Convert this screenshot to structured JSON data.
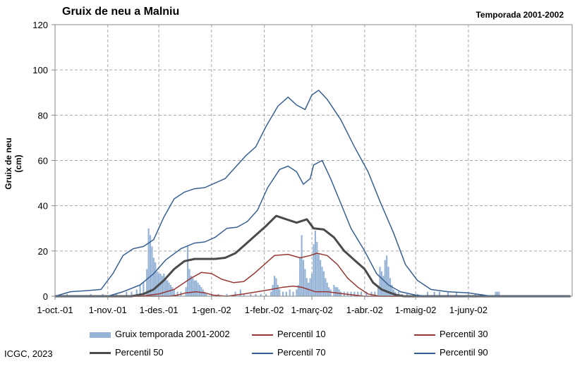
{
  "chart_data": {
    "type": "bar+line",
    "title": "Gruix de neu a Malniu",
    "subtitle": "Temporada 2001-2002",
    "ylabel": "Gruix de neu (cm)",
    "xlabel": "",
    "ylim": [
      0,
      120
    ],
    "yticks": [
      "0",
      "20",
      "40",
      "60",
      "80",
      "100",
      "120"
    ],
    "xlim": [
      "2001-10-01",
      "2002-07-31"
    ],
    "xticks": [
      {
        "date": "2001-10-01",
        "label": "1-oct.-01"
      },
      {
        "date": "2001-11-01",
        "label": "1-nov.-01"
      },
      {
        "date": "2001-12-01",
        "label": "1-des.-01"
      },
      {
        "date": "2002-01-01",
        "label": "1-gen.-02"
      },
      {
        "date": "2002-02-01",
        "label": "1-febr.-02"
      },
      {
        "date": "2002-03-01",
        "label": "1-març-02"
      },
      {
        "date": "2002-04-01",
        "label": "1-abr.-02"
      },
      {
        "date": "2002-05-01",
        "label": "1-maig-02"
      },
      {
        "date": "2002-06-01",
        "label": "1-juny-02"
      }
    ],
    "grid": true,
    "legend_placement": "bottom",
    "bars": {
      "name": "Gruix temporada 2001-2002",
      "color": "#95b3d7",
      "points": [
        [
          "2001-10-08",
          1
        ],
        [
          "2001-10-22",
          1
        ],
        [
          "2001-10-29",
          1
        ],
        [
          "2001-11-06",
          1
        ],
        [
          "2001-11-12",
          2
        ],
        [
          "2001-11-15",
          2
        ],
        [
          "2001-11-18",
          3
        ],
        [
          "2001-11-20",
          5
        ],
        [
          "2001-11-22",
          6
        ],
        [
          "2001-11-24",
          12
        ],
        [
          "2001-11-25",
          30
        ],
        [
          "2001-11-26",
          27
        ],
        [
          "2001-11-27",
          22
        ],
        [
          "2001-11-28",
          17
        ],
        [
          "2001-11-29",
          15
        ],
        [
          "2001-11-30",
          11
        ],
        [
          "2001-12-01",
          10
        ],
        [
          "2001-12-02",
          10
        ],
        [
          "2001-12-03",
          9
        ],
        [
          "2001-12-04",
          10
        ],
        [
          "2001-12-05",
          8
        ],
        [
          "2001-12-06",
          7
        ],
        [
          "2001-12-07",
          6
        ],
        [
          "2001-12-08",
          5
        ],
        [
          "2001-12-09",
          4
        ],
        [
          "2001-12-10",
          3
        ],
        [
          "2001-12-12",
          2
        ],
        [
          "2001-12-14",
          2
        ],
        [
          "2001-12-17",
          4
        ],
        [
          "2001-12-18",
          22
        ],
        [
          "2001-12-19",
          12
        ],
        [
          "2001-12-20",
          9
        ],
        [
          "2001-12-21",
          8
        ],
        [
          "2001-12-22",
          7
        ],
        [
          "2001-12-23",
          7
        ],
        [
          "2001-12-24",
          6
        ],
        [
          "2001-12-25",
          5
        ],
        [
          "2001-12-26",
          4
        ],
        [
          "2001-12-27",
          3
        ],
        [
          "2001-12-28",
          2
        ],
        [
          "2001-12-29",
          1
        ],
        [
          "2002-01-01",
          1
        ],
        [
          "2002-01-05",
          1
        ],
        [
          "2002-01-10",
          1
        ],
        [
          "2002-01-15",
          2
        ],
        [
          "2002-01-18",
          3
        ],
        [
          "2002-01-20",
          1
        ],
        [
          "2002-01-24",
          1
        ],
        [
          "2002-01-27",
          1
        ],
        [
          "2002-01-30",
          1
        ],
        [
          "2002-02-02",
          1
        ],
        [
          "2002-02-05",
          2
        ],
        [
          "2002-02-06",
          5
        ],
        [
          "2002-02-07",
          9
        ],
        [
          "2002-02-08",
          8
        ],
        [
          "2002-02-09",
          5
        ],
        [
          "2002-02-10",
          3
        ],
        [
          "2002-02-12",
          2
        ],
        [
          "2002-02-14",
          2
        ],
        [
          "2002-02-16",
          3
        ],
        [
          "2002-02-18",
          2
        ],
        [
          "2002-02-20",
          3
        ],
        [
          "2002-02-21",
          5
        ],
        [
          "2002-02-22",
          17
        ],
        [
          "2002-02-23",
          27
        ],
        [
          "2002-02-24",
          16
        ],
        [
          "2002-02-25",
          12
        ],
        [
          "2002-02-26",
          8
        ],
        [
          "2002-02-27",
          6
        ],
        [
          "2002-02-28",
          8
        ],
        [
          "2002-03-01",
          10
        ],
        [
          "2002-03-02",
          23
        ],
        [
          "2002-03-03",
          29
        ],
        [
          "2002-03-04",
          24
        ],
        [
          "2002-03-05",
          19
        ],
        [
          "2002-03-06",
          16
        ],
        [
          "2002-03-07",
          13
        ],
        [
          "2002-03-08",
          11
        ],
        [
          "2002-03-09",
          8
        ],
        [
          "2002-03-10",
          6
        ],
        [
          "2002-03-11",
          4
        ],
        [
          "2002-03-12",
          3
        ],
        [
          "2002-03-14",
          5
        ],
        [
          "2002-03-15",
          4
        ],
        [
          "2002-03-16",
          4
        ],
        [
          "2002-03-17",
          3
        ],
        [
          "2002-03-18",
          2
        ],
        [
          "2002-03-20",
          2
        ],
        [
          "2002-03-22",
          2
        ],
        [
          "2002-03-24",
          2
        ],
        [
          "2002-03-26",
          2
        ],
        [
          "2002-03-28",
          2
        ],
        [
          "2002-03-30",
          2
        ],
        [
          "2002-04-02",
          2
        ],
        [
          "2002-04-05",
          2
        ],
        [
          "2002-04-07",
          2
        ],
        [
          "2002-04-09",
          4
        ],
        [
          "2002-04-10",
          13
        ],
        [
          "2002-04-11",
          11
        ],
        [
          "2002-04-12",
          9
        ],
        [
          "2002-04-13",
          16
        ],
        [
          "2002-04-14",
          18
        ],
        [
          "2002-04-15",
          13
        ],
        [
          "2002-04-16",
          8
        ],
        [
          "2002-04-17",
          5
        ],
        [
          "2002-04-18",
          3
        ],
        [
          "2002-04-19",
          2
        ],
        [
          "2002-04-21",
          2
        ],
        [
          "2002-04-23",
          1
        ],
        [
          "2002-04-26",
          1
        ],
        [
          "2002-05-02",
          1
        ],
        [
          "2002-05-08",
          2
        ],
        [
          "2002-05-12",
          2
        ],
        [
          "2002-05-15",
          2
        ],
        [
          "2002-05-20",
          2
        ],
        [
          "2002-05-25",
          2
        ],
        [
          "2002-06-01",
          1
        ],
        [
          "2002-06-05",
          1
        ],
        [
          "2002-06-09",
          1
        ],
        [
          "2002-06-17",
          2
        ],
        [
          "2002-06-18",
          2
        ],
        [
          "2002-06-19",
          2
        ]
      ]
    },
    "series": [
      {
        "name": "Percentil 10",
        "color": "#953735",
        "width": 1.5,
        "points": [
          [
            "2001-10-01",
            0
          ],
          [
            "2001-12-07",
            0
          ],
          [
            "2001-12-12",
            0.5
          ],
          [
            "2001-12-17",
            1.5
          ],
          [
            "2001-12-23",
            2
          ],
          [
            "2001-12-28",
            1.5
          ],
          [
            "2002-01-02",
            0.5
          ],
          [
            "2002-01-10",
            0
          ],
          [
            "2002-01-20",
            1
          ],
          [
            "2002-01-28",
            2
          ],
          [
            "2002-02-05",
            3
          ],
          [
            "2002-02-12",
            4
          ],
          [
            "2002-02-18",
            4.5
          ],
          [
            "2002-02-23",
            4
          ],
          [
            "2002-02-27",
            3
          ],
          [
            "2002-03-03",
            2
          ],
          [
            "2002-03-10",
            2
          ],
          [
            "2002-03-20",
            1
          ],
          [
            "2002-04-01",
            0
          ],
          [
            "2002-07-31",
            0
          ]
        ]
      },
      {
        "name": "Percentil 30",
        "color": "#953735",
        "width": 1.5,
        "points": [
          [
            "2001-10-01",
            0
          ],
          [
            "2001-11-20",
            0
          ],
          [
            "2001-12-01",
            1
          ],
          [
            "2001-12-10",
            3
          ],
          [
            "2001-12-20",
            8
          ],
          [
            "2001-12-26",
            10.5
          ],
          [
            "2002-01-01",
            10
          ],
          [
            "2002-01-07",
            7.5
          ],
          [
            "2002-01-14",
            6
          ],
          [
            "2002-01-20",
            6.5
          ],
          [
            "2002-01-26",
            10
          ],
          [
            "2002-02-01",
            14
          ],
          [
            "2002-02-07",
            18
          ],
          [
            "2002-02-15",
            18.5
          ],
          [
            "2002-02-22",
            17
          ],
          [
            "2002-02-28",
            18
          ],
          [
            "2002-03-04",
            19
          ],
          [
            "2002-03-10",
            18
          ],
          [
            "2002-03-16",
            14
          ],
          [
            "2002-03-22",
            8
          ],
          [
            "2002-03-28",
            4
          ],
          [
            "2002-04-03",
            1
          ],
          [
            "2002-04-10",
            0
          ],
          [
            "2002-07-31",
            0
          ]
        ]
      },
      {
        "name": "Percentil 50",
        "color": "#4a4a4a",
        "width": 3,
        "points": [
          [
            "2001-10-01",
            0
          ],
          [
            "2001-11-15",
            0
          ],
          [
            "2001-11-22",
            1
          ],
          [
            "2001-11-28",
            3
          ],
          [
            "2001-12-04",
            7
          ],
          [
            "2001-12-10",
            12
          ],
          [
            "2001-12-16",
            15.5
          ],
          [
            "2001-12-22",
            16.5
          ],
          [
            "2001-12-28",
            16.5
          ],
          [
            "2002-01-03",
            16.5
          ],
          [
            "2002-01-09",
            17
          ],
          [
            "2002-01-15",
            19
          ],
          [
            "2002-01-21",
            23
          ],
          [
            "2002-01-27",
            27
          ],
          [
            "2002-02-02",
            31
          ],
          [
            "2002-02-08",
            35.5
          ],
          [
            "2002-02-14",
            34
          ],
          [
            "2002-02-20",
            32.5
          ],
          [
            "2002-02-26",
            34
          ],
          [
            "2002-03-02",
            30
          ],
          [
            "2002-03-08",
            29.5
          ],
          [
            "2002-03-14",
            26
          ],
          [
            "2002-03-20",
            20
          ],
          [
            "2002-03-26",
            16
          ],
          [
            "2002-04-01",
            12
          ],
          [
            "2002-04-06",
            6
          ],
          [
            "2002-04-11",
            3
          ],
          [
            "2002-04-16",
            1.5
          ],
          [
            "2002-04-20",
            0.5
          ],
          [
            "2002-04-24",
            0
          ],
          [
            "2002-07-31",
            0
          ]
        ]
      },
      {
        "name": "Percentil 70",
        "color": "#376092",
        "width": 1.5,
        "points": [
          [
            "2001-10-01",
            0
          ],
          [
            "2001-11-01",
            0
          ],
          [
            "2001-11-10",
            2
          ],
          [
            "2001-11-20",
            5
          ],
          [
            "2001-11-28",
            10
          ],
          [
            "2001-12-05",
            16
          ],
          [
            "2001-12-14",
            21
          ],
          [
            "2001-12-22",
            23.5
          ],
          [
            "2001-12-28",
            24
          ],
          [
            "2002-01-03",
            26
          ],
          [
            "2002-01-10",
            30
          ],
          [
            "2002-01-16",
            30.5
          ],
          [
            "2002-01-22",
            33
          ],
          [
            "2002-01-28",
            38
          ],
          [
            "2002-02-03",
            48
          ],
          [
            "2002-02-10",
            56
          ],
          [
            "2002-02-15",
            57.5
          ],
          [
            "2002-02-20",
            55
          ],
          [
            "2002-02-24",
            49.5
          ],
          [
            "2002-02-28",
            52
          ],
          [
            "2002-03-02",
            58
          ],
          [
            "2002-03-07",
            60
          ],
          [
            "2002-03-12",
            52
          ],
          [
            "2002-03-18",
            41
          ],
          [
            "2002-03-24",
            30
          ],
          [
            "2002-04-01",
            20
          ],
          [
            "2002-04-08",
            10
          ],
          [
            "2002-04-15",
            5
          ],
          [
            "2002-04-22",
            2
          ],
          [
            "2002-05-01",
            0.5
          ],
          [
            "2002-05-08",
            0
          ],
          [
            "2002-07-31",
            0
          ]
        ]
      },
      {
        "name": "Percentil 90",
        "color": "#376092",
        "width": 1.5,
        "points": [
          [
            "2001-10-01",
            0
          ],
          [
            "2001-10-10",
            2
          ],
          [
            "2001-10-20",
            2.5
          ],
          [
            "2001-10-28",
            3
          ],
          [
            "2001-11-04",
            10
          ],
          [
            "2001-11-10",
            18
          ],
          [
            "2001-11-16",
            21
          ],
          [
            "2001-11-22",
            22
          ],
          [
            "2001-11-28",
            25
          ],
          [
            "2001-12-04",
            35
          ],
          [
            "2001-12-10",
            43
          ],
          [
            "2001-12-16",
            46
          ],
          [
            "2001-12-22",
            47.5
          ],
          [
            "2001-12-28",
            48
          ],
          [
            "2002-01-03",
            50
          ],
          [
            "2002-01-09",
            52
          ],
          [
            "2002-01-15",
            57
          ],
          [
            "2002-01-21",
            62
          ],
          [
            "2002-01-27",
            66
          ],
          [
            "2002-02-02",
            75
          ],
          [
            "2002-02-09",
            84
          ],
          [
            "2002-02-15",
            88
          ],
          [
            "2002-02-20",
            84.5
          ],
          [
            "2002-02-25",
            82.5
          ],
          [
            "2002-03-01",
            89
          ],
          [
            "2002-03-05",
            91
          ],
          [
            "2002-03-10",
            87
          ],
          [
            "2002-03-18",
            78
          ],
          [
            "2002-03-26",
            66
          ],
          [
            "2002-04-03",
            55
          ],
          [
            "2002-04-10",
            42
          ],
          [
            "2002-04-18",
            28
          ],
          [
            "2002-04-25",
            14
          ],
          [
            "2002-05-02",
            7
          ],
          [
            "2002-05-10",
            3
          ],
          [
            "2002-05-20",
            2
          ],
          [
            "2002-06-01",
            1.5
          ],
          [
            "2002-06-10",
            0.5
          ],
          [
            "2002-06-15",
            0
          ],
          [
            "2002-07-31",
            0
          ]
        ]
      }
    ]
  },
  "credit": "ICGC, 2023"
}
